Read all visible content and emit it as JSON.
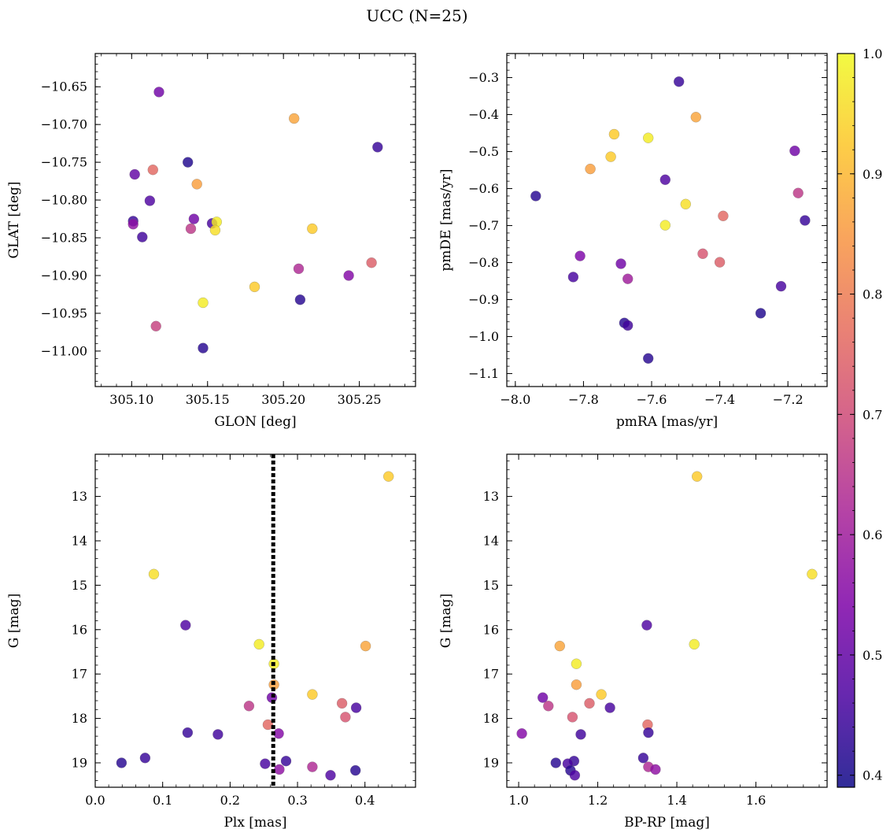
{
  "figure": {
    "title": "UCC (N=25)"
  },
  "colorbar": {
    "cmap": "plasma",
    "vmin": 0.39,
    "vmax": 1.0,
    "ticks": [
      0.4,
      0.5,
      0.6,
      0.7,
      0.8,
      0.9,
      1.0
    ],
    "tick_labels": [
      "0.4",
      "0.5",
      "0.6",
      "0.7",
      "0.8",
      "0.9",
      "1.0"
    ]
  },
  "chart_data": [
    {
      "type": "scatter",
      "name": "glon-glat",
      "xlabel": "GLON [deg]",
      "ylabel": "GLAT [deg]",
      "xlim": [
        305.076,
        305.287
      ],
      "ylim": [
        -11.047,
        -10.606
      ],
      "xticks": [
        305.1,
        305.15,
        305.2,
        305.25
      ],
      "xtick_labels": [
        "305.10",
        "305.15",
        "305.20",
        "305.25"
      ],
      "yticks": [
        -10.65,
        -10.7,
        -10.75,
        -10.8,
        -10.85,
        -10.9,
        -10.95,
        -11.0
      ],
      "ytick_labels": [
        "−10.65",
        "−10.70",
        "−10.75",
        "−10.80",
        "−10.85",
        "−10.90",
        "−10.95",
        "−11.00"
      ],
      "points": [
        {
          "x": 305.118,
          "y": -10.657,
          "c": 0.52
        },
        {
          "x": 305.207,
          "y": -10.692,
          "c": 0.87
        },
        {
          "x": 305.262,
          "y": -10.73,
          "c": 0.44
        },
        {
          "x": 305.137,
          "y": -10.75,
          "c": 0.41
        },
        {
          "x": 305.102,
          "y": -10.766,
          "c": 0.5
        },
        {
          "x": 305.114,
          "y": -10.76,
          "c": 0.76
        },
        {
          "x": 305.143,
          "y": -10.779,
          "c": 0.86
        },
        {
          "x": 305.112,
          "y": -10.801,
          "c": 0.47
        },
        {
          "x": 305.101,
          "y": -10.828,
          "c": 0.44
        },
        {
          "x": 305.101,
          "y": -10.832,
          "c": 0.57
        },
        {
          "x": 305.141,
          "y": -10.825,
          "c": 0.52
        },
        {
          "x": 305.153,
          "y": -10.831,
          "c": 0.46
        },
        {
          "x": 305.156,
          "y": -10.829,
          "c": 0.98
        },
        {
          "x": 305.139,
          "y": -10.838,
          "c": 0.66
        },
        {
          "x": 305.155,
          "y": -10.84,
          "c": 0.96
        },
        {
          "x": 305.107,
          "y": -10.849,
          "c": 0.45
        },
        {
          "x": 305.219,
          "y": -10.838,
          "c": 0.93
        },
        {
          "x": 305.258,
          "y": -10.883,
          "c": 0.74
        },
        {
          "x": 305.21,
          "y": -10.891,
          "c": 0.63
        },
        {
          "x": 305.243,
          "y": -10.9,
          "c": 0.55
        },
        {
          "x": 305.181,
          "y": -10.915,
          "c": 0.93
        },
        {
          "x": 305.211,
          "y": -10.932,
          "c": 0.42
        },
        {
          "x": 305.147,
          "y": -10.936,
          "c": 0.98
        },
        {
          "x": 305.116,
          "y": -10.967,
          "c": 0.68
        },
        {
          "x": 305.147,
          "y": -10.996,
          "c": 0.42
        }
      ]
    },
    {
      "type": "scatter",
      "name": "pm",
      "xlabel": "pmRA [mas/yr]",
      "ylabel": "pmDE [mas/yr]",
      "xlim": [
        -8.025,
        -7.085
      ],
      "ylim": [
        -1.135,
        -0.235
      ],
      "xticks": [
        -8.0,
        -7.8,
        -7.6,
        -7.4,
        -7.2
      ],
      "xtick_labels": [
        "−8.0",
        "−7.8",
        "−7.6",
        "−7.4",
        "−7.2"
      ],
      "yticks": [
        -0.3,
        -0.4,
        -0.5,
        -0.6,
        -0.7,
        -0.8,
        -0.9,
        -1.0,
        -1.1
      ],
      "ytick_labels": [
        "−0.3",
        "−0.4",
        "−0.5",
        "−0.6",
        "−0.7",
        "−0.8",
        "−0.9",
        "−1.0",
        "−1.1"
      ],
      "points": [
        {
          "x": -7.52,
          "y": -0.311,
          "c": 0.44
        },
        {
          "x": -7.47,
          "y": -0.407,
          "c": 0.87
        },
        {
          "x": -7.71,
          "y": -0.453,
          "c": 0.93
        },
        {
          "x": -7.61,
          "y": -0.463,
          "c": 0.98
        },
        {
          "x": -7.18,
          "y": -0.498,
          "c": 0.52
        },
        {
          "x": -7.72,
          "y": -0.514,
          "c": 0.93
        },
        {
          "x": -7.78,
          "y": -0.547,
          "c": 0.86
        },
        {
          "x": -7.56,
          "y": -0.576,
          "c": 0.47
        },
        {
          "x": -7.94,
          "y": -0.62,
          "c": 0.42
        },
        {
          "x": -7.17,
          "y": -0.612,
          "c": 0.66
        },
        {
          "x": -7.5,
          "y": -0.642,
          "c": 0.96
        },
        {
          "x": -7.39,
          "y": -0.674,
          "c": 0.76
        },
        {
          "x": -7.15,
          "y": -0.686,
          "c": 0.44
        },
        {
          "x": -7.56,
          "y": -0.699,
          "c": 0.98
        },
        {
          "x": -7.45,
          "y": -0.776,
          "c": 0.72
        },
        {
          "x": -7.81,
          "y": -0.782,
          "c": 0.54
        },
        {
          "x": -7.4,
          "y": -0.799,
          "c": 0.74
        },
        {
          "x": -7.69,
          "y": -0.803,
          "c": 0.52
        },
        {
          "x": -7.83,
          "y": -0.839,
          "c": 0.46
        },
        {
          "x": -7.67,
          "y": -0.844,
          "c": 0.6
        },
        {
          "x": -7.22,
          "y": -0.864,
          "c": 0.46
        },
        {
          "x": -7.28,
          "y": -0.937,
          "c": 0.41
        },
        {
          "x": -7.68,
          "y": -0.963,
          "c": 0.42
        },
        {
          "x": -7.67,
          "y": -0.97,
          "c": 0.45
        },
        {
          "x": -7.61,
          "y": -1.059,
          "c": 0.42
        }
      ]
    },
    {
      "type": "scatter",
      "name": "plx-g",
      "xlabel": "Plx [mas]",
      "ylabel": "G [mag]",
      "xlim": [
        0.0,
        0.475
      ],
      "ylim": [
        19.55,
        12.05
      ],
      "y_inverted": true,
      "xticks": [
        0.0,
        0.1,
        0.2,
        0.3,
        0.4
      ],
      "xtick_labels": [
        "0.0",
        "0.1",
        "0.2",
        "0.3",
        "0.4"
      ],
      "yticks": [
        13,
        14,
        15,
        16,
        17,
        18,
        19
      ],
      "ytick_labels": [
        "13",
        "14",
        "15",
        "16",
        "17",
        "18",
        "19"
      ],
      "vline": {
        "x": 0.264,
        "style": "dotted"
      },
      "points": [
        {
          "x": 0.435,
          "y": 12.55,
          "c": 0.93
        },
        {
          "x": 0.087,
          "y": 14.75,
          "c": 0.96
        },
        {
          "x": 0.134,
          "y": 15.9,
          "c": 0.47
        },
        {
          "x": 0.243,
          "y": 16.33,
          "c": 0.98
        },
        {
          "x": 0.401,
          "y": 16.37,
          "c": 0.87
        },
        {
          "x": 0.265,
          "y": 16.77,
          "c": 0.98
        },
        {
          "x": 0.265,
          "y": 17.24,
          "c": 0.86
        },
        {
          "x": 0.322,
          "y": 17.46,
          "c": 0.93
        },
        {
          "x": 0.262,
          "y": 17.53,
          "c": 0.52
        },
        {
          "x": 0.366,
          "y": 17.66,
          "c": 0.74
        },
        {
          "x": 0.228,
          "y": 17.72,
          "c": 0.66
        },
        {
          "x": 0.387,
          "y": 17.76,
          "c": 0.46
        },
        {
          "x": 0.371,
          "y": 17.97,
          "c": 0.72
        },
        {
          "x": 0.256,
          "y": 18.14,
          "c": 0.76
        },
        {
          "x": 0.137,
          "y": 18.32,
          "c": 0.44
        },
        {
          "x": 0.272,
          "y": 18.34,
          "c": 0.55
        },
        {
          "x": 0.182,
          "y": 18.36,
          "c": 0.45
        },
        {
          "x": 0.074,
          "y": 18.89,
          "c": 0.44
        },
        {
          "x": 0.039,
          "y": 19.0,
          "c": 0.42
        },
        {
          "x": 0.252,
          "y": 19.02,
          "c": 0.46
        },
        {
          "x": 0.283,
          "y": 18.96,
          "c": 0.44
        },
        {
          "x": 0.322,
          "y": 19.09,
          "c": 0.63
        },
        {
          "x": 0.273,
          "y": 19.15,
          "c": 0.57
        },
        {
          "x": 0.386,
          "y": 19.17,
          "c": 0.42
        },
        {
          "x": 0.349,
          "y": 19.28,
          "c": 0.47
        }
      ]
    },
    {
      "type": "scatter",
      "name": "cmd",
      "xlabel": "BP-RP [mag]",
      "ylabel": "G [mag]",
      "xlim": [
        0.97,
        1.78
      ],
      "ylim": [
        19.55,
        12.05
      ],
      "y_inverted": true,
      "xticks": [
        1.0,
        1.2,
        1.4,
        1.6
      ],
      "xtick_labels": [
        "1.0",
        "1.2",
        "1.4",
        "1.6"
      ],
      "yticks": [
        13,
        14,
        15,
        16,
        17,
        18,
        19
      ],
      "ytick_labels": [
        "13",
        "14",
        "15",
        "16",
        "17",
        "18",
        "19"
      ],
      "points": [
        {
          "x": 1.451,
          "y": 12.55,
          "c": 0.93
        },
        {
          "x": 1.742,
          "y": 14.75,
          "c": 0.96
        },
        {
          "x": 1.324,
          "y": 15.9,
          "c": 0.47
        },
        {
          "x": 1.444,
          "y": 16.33,
          "c": 0.98
        },
        {
          "x": 1.104,
          "y": 16.37,
          "c": 0.87
        },
        {
          "x": 1.146,
          "y": 16.77,
          "c": 0.98
        },
        {
          "x": 1.146,
          "y": 17.24,
          "c": 0.86
        },
        {
          "x": 1.209,
          "y": 17.46,
          "c": 0.93
        },
        {
          "x": 1.061,
          "y": 17.53,
          "c": 0.52
        },
        {
          "x": 1.179,
          "y": 17.66,
          "c": 0.74
        },
        {
          "x": 1.075,
          "y": 17.72,
          "c": 0.66
        },
        {
          "x": 1.231,
          "y": 17.76,
          "c": 0.46
        },
        {
          "x": 1.136,
          "y": 17.97,
          "c": 0.72
        },
        {
          "x": 1.326,
          "y": 18.14,
          "c": 0.76
        },
        {
          "x": 1.328,
          "y": 18.32,
          "c": 0.44
        },
        {
          "x": 1.008,
          "y": 18.34,
          "c": 0.55
        },
        {
          "x": 1.157,
          "y": 18.36,
          "c": 0.45
        },
        {
          "x": 1.315,
          "y": 18.89,
          "c": 0.44
        },
        {
          "x": 1.094,
          "y": 19.0,
          "c": 0.42
        },
        {
          "x": 1.14,
          "y": 18.96,
          "c": 0.44
        },
        {
          "x": 1.124,
          "y": 19.02,
          "c": 0.46
        },
        {
          "x": 1.328,
          "y": 19.09,
          "c": 0.63
        },
        {
          "x": 1.346,
          "y": 19.15,
          "c": 0.57
        },
        {
          "x": 1.131,
          "y": 19.17,
          "c": 0.42
        },
        {
          "x": 1.142,
          "y": 19.28,
          "c": 0.47
        }
      ]
    }
  ]
}
